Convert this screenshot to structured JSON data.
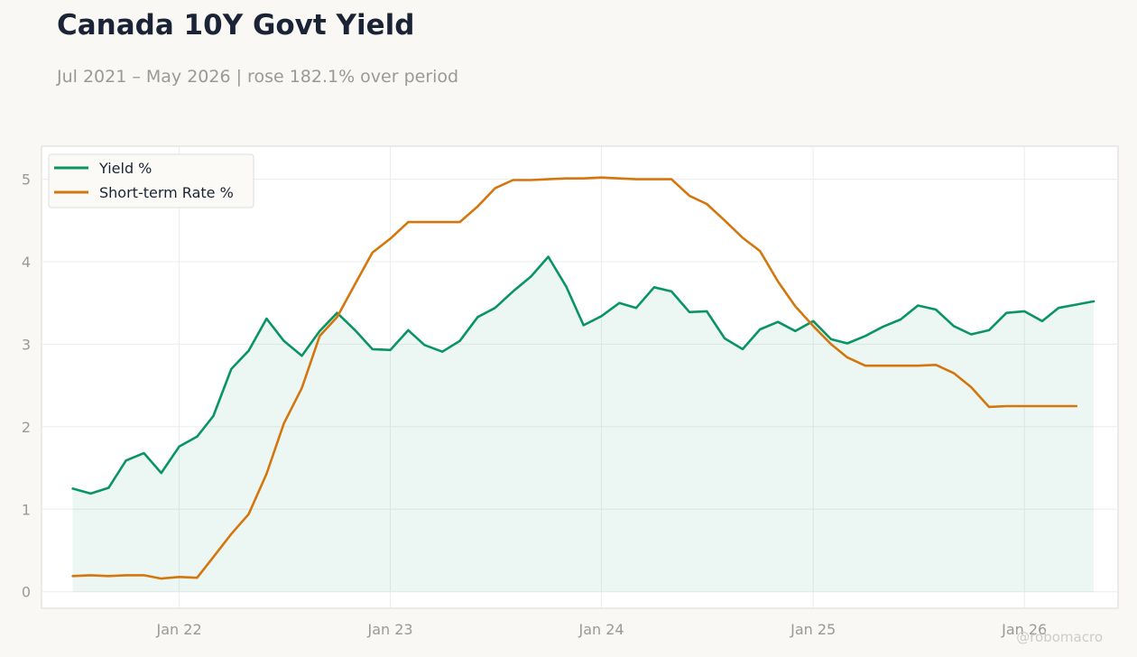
{
  "header": {
    "title": "Canada 10Y Govt Yield",
    "subtitle": "Jul 2021 – May 2026 | rose 182.1% over period"
  },
  "watermark": "@robomacro",
  "colors": {
    "yield": "#0a9466",
    "rate": "#d4760d",
    "grid": "#ececec",
    "axis_text": "#999999"
  },
  "chart_data": {
    "type": "line",
    "title": "Canada 10Y Govt Yield",
    "subtitle": "Jul 2021 – May 2026 | rose 182.1% over period",
    "x_tick_labels": [
      "Jan 22",
      "Jan 23",
      "Jan 24",
      "Jan 25",
      "Jan 26"
    ],
    "y_ticks": [
      0,
      1,
      2,
      3,
      4,
      5
    ],
    "ylim": [
      -0.2,
      5.4
    ],
    "xlim": [
      "2021-05-08",
      "2026-06-12"
    ],
    "grid": true,
    "legend_position": "top-left",
    "series": [
      {
        "name": "Yield %",
        "fill_area": true,
        "points": [
          [
            "2021-07",
            1.25
          ],
          [
            "2021-08",
            1.19
          ],
          [
            "2021-09",
            1.26
          ],
          [
            "2021-10",
            1.59
          ],
          [
            "2021-11",
            1.68
          ],
          [
            "2021-12",
            1.44
          ],
          [
            "2022-01",
            1.76
          ],
          [
            "2022-02",
            1.88
          ],
          [
            "2022-03",
            2.13
          ],
          [
            "2022-04",
            2.7
          ],
          [
            "2022-05",
            2.92
          ],
          [
            "2022-06",
            3.31
          ],
          [
            "2022-07",
            3.04
          ],
          [
            "2022-08",
            2.86
          ],
          [
            "2022-09",
            3.16
          ],
          [
            "2022-10",
            3.38
          ],
          [
            "2022-11",
            3.17
          ],
          [
            "2022-12",
            2.94
          ],
          [
            "2023-01",
            2.93
          ],
          [
            "2023-02",
            3.17
          ],
          [
            "2023-03",
            2.99
          ],
          [
            "2023-04",
            2.91
          ],
          [
            "2023-05",
            3.04
          ],
          [
            "2023-06",
            3.33
          ],
          [
            "2023-07",
            3.44
          ],
          [
            "2023-08",
            3.64
          ],
          [
            "2023-09",
            3.82
          ],
          [
            "2023-10",
            4.06
          ],
          [
            "2023-11",
            3.7
          ],
          [
            "2023-12",
            3.23
          ],
          [
            "2024-01",
            3.34
          ],
          [
            "2024-02",
            3.5
          ],
          [
            "2024-03",
            3.44
          ],
          [
            "2024-04",
            3.69
          ],
          [
            "2024-05",
            3.64
          ],
          [
            "2024-06",
            3.39
          ],
          [
            "2024-07",
            3.4
          ],
          [
            "2024-08",
            3.07
          ],
          [
            "2024-09",
            2.94
          ],
          [
            "2024-10",
            3.18
          ],
          [
            "2024-11",
            3.27
          ],
          [
            "2024-12",
            3.16
          ],
          [
            "2025-01",
            3.28
          ],
          [
            "2025-02",
            3.06
          ],
          [
            "2025-03",
            3.01
          ],
          [
            "2025-04",
            3.1
          ],
          [
            "2025-05",
            3.21
          ],
          [
            "2025-06",
            3.3
          ],
          [
            "2025-07",
            3.47
          ],
          [
            "2025-08",
            3.42
          ],
          [
            "2025-09",
            3.22
          ],
          [
            "2025-10",
            3.12
          ],
          [
            "2025-11",
            3.17
          ],
          [
            "2025-12",
            3.38
          ],
          [
            "2026-01",
            3.4
          ],
          [
            "2026-02",
            3.28
          ],
          [
            "2026-03",
            3.44
          ],
          [
            "2026-04",
            3.48
          ],
          [
            "2026-05",
            3.52
          ]
        ]
      },
      {
        "name": "Short-term Rate %",
        "fill_area": false,
        "points": [
          [
            "2021-07",
            0.19
          ],
          [
            "2021-08",
            0.2
          ],
          [
            "2021-09",
            0.19
          ],
          [
            "2021-10",
            0.2
          ],
          [
            "2021-11",
            0.2
          ],
          [
            "2021-12",
            0.16
          ],
          [
            "2022-01",
            0.18
          ],
          [
            "2022-02",
            0.17
          ],
          [
            "2022-03",
            0.42
          ],
          [
            "2022-04",
            0.7
          ],
          [
            "2022-05",
            0.94
          ],
          [
            "2022-06",
            1.43
          ],
          [
            "2022-07",
            2.04
          ],
          [
            "2022-08",
            2.47
          ],
          [
            "2022-09",
            3.1
          ],
          [
            "2022-10",
            3.33
          ],
          [
            "2022-11",
            3.73
          ],
          [
            "2022-12",
            4.11
          ],
          [
            "2023-01",
            4.28
          ],
          [
            "2023-02",
            4.48
          ],
          [
            "2023-03",
            4.48
          ],
          [
            "2023-04",
            4.48
          ],
          [
            "2023-05",
            4.48
          ],
          [
            "2023-06",
            4.67
          ],
          [
            "2023-07",
            4.89
          ],
          [
            "2023-08",
            4.99
          ],
          [
            "2023-09",
            4.99
          ],
          [
            "2023-10",
            5.0
          ],
          [
            "2023-11",
            5.01
          ],
          [
            "2023-12",
            5.01
          ],
          [
            "2024-01",
            5.02
          ],
          [
            "2024-02",
            5.01
          ],
          [
            "2024-03",
            5.0
          ],
          [
            "2024-04",
            5.0
          ],
          [
            "2024-05",
            5.0
          ],
          [
            "2024-06",
            4.8
          ],
          [
            "2024-07",
            4.7
          ],
          [
            "2024-08",
            4.5
          ],
          [
            "2024-09",
            4.29
          ],
          [
            "2024-10",
            4.13
          ],
          [
            "2024-11",
            3.76
          ],
          [
            "2024-12",
            3.46
          ],
          [
            "2025-01",
            3.22
          ],
          [
            "2025-02",
            3.0
          ],
          [
            "2025-03",
            2.84
          ],
          [
            "2025-04",
            2.74
          ],
          [
            "2025-05",
            2.74
          ],
          [
            "2025-06",
            2.74
          ],
          [
            "2025-07",
            2.74
          ],
          [
            "2025-08",
            2.75
          ],
          [
            "2025-09",
            2.65
          ],
          [
            "2025-10",
            2.48
          ],
          [
            "2025-11",
            2.24
          ],
          [
            "2025-12",
            2.25
          ],
          [
            "2026-01",
            2.25
          ],
          [
            "2026-02",
            2.25
          ],
          [
            "2026-03",
            2.25
          ],
          [
            "2026-04",
            2.25
          ]
        ]
      }
    ]
  }
}
